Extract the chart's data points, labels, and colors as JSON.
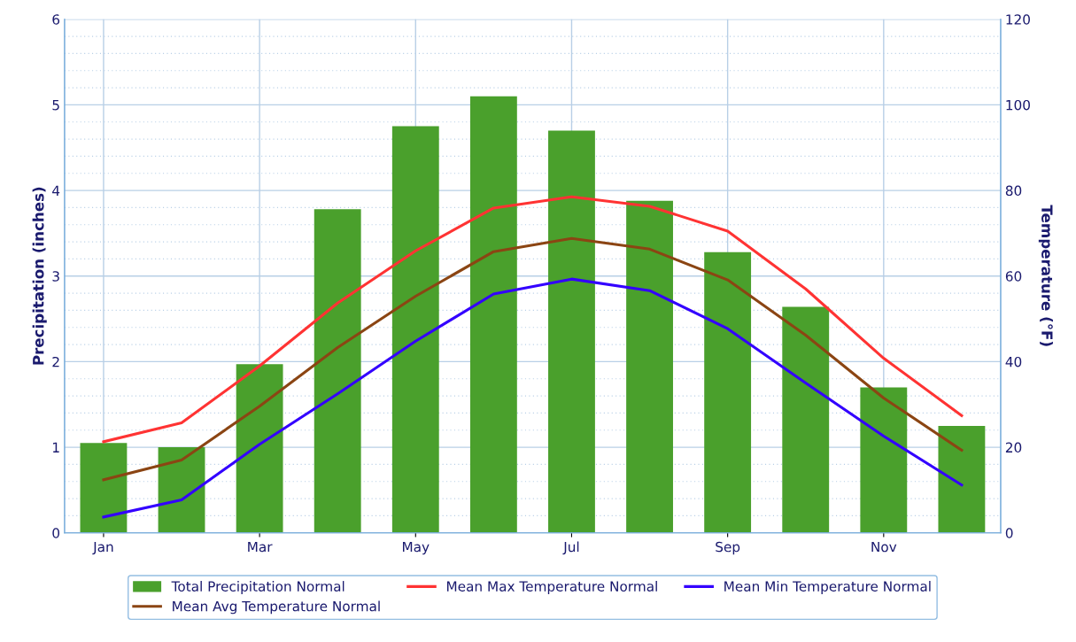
{
  "chart_data": {
    "type": "bar",
    "categories": [
      "Jan",
      null,
      "Mar",
      null,
      "May",
      null,
      "Jul",
      null,
      "Sep",
      null,
      "Nov",
      null
    ],
    "series": [
      {
        "name": "Total Precipitation Normal",
        "color": "#4aa02c",
        "values": [
          1.05,
          1.0,
          1.97,
          3.78,
          4.75,
          5.1,
          4.7,
          3.88,
          3.28,
          2.64,
          1.7,
          1.25
        ]
      },
      {
        "name": "Mean Max Temperature Normal",
        "type": "line",
        "axis": "y2",
        "color": "#ff3333",
        "values": [
          21.3,
          25.7,
          39.0,
          53.7,
          65.9,
          75.9,
          78.5,
          76.3,
          70.5,
          57.0,
          40.8,
          27.4
        ]
      },
      {
        "name": "Mean Min Temperature Normal",
        "type": "line",
        "axis": "y2",
        "color": "#3300ff",
        "values": [
          3.7,
          7.7,
          20.7,
          32.5,
          44.8,
          55.8,
          59.3,
          56.6,
          47.7,
          35.0,
          22.6,
          11.2
        ]
      },
      {
        "name": "Mean Avg Temperature Normal",
        "type": "line",
        "axis": "y2",
        "color": "#8b4513",
        "values": [
          12.4,
          17.0,
          29.6,
          43.3,
          55.3,
          65.7,
          68.8,
          66.3,
          59.1,
          46.2,
          31.5,
          19.3
        ]
      }
    ],
    "ylabel": "Precipitation (inches)",
    "y2label": "Temperature (°F)",
    "ylim": [
      0,
      6
    ],
    "yticks": [
      0,
      {
        "value": 0.2,
        "label": null
      },
      {
        "value": 0.4,
        "label": null
      },
      {
        "value": 0.6,
        "label": null
      },
      {
        "value": 0.8,
        "label": null
      },
      1,
      {
        "value": 1.2,
        "label": null
      },
      {
        "value": 1.4,
        "label": null
      },
      {
        "value": 1.6,
        "label": null
      },
      {
        "value": 1.8,
        "label": null
      },
      2,
      {
        "value": 2.2,
        "label": null
      },
      {
        "value": 2.4,
        "label": null
      },
      {
        "value": 2.6,
        "label": null
      },
      {
        "value": 2.8,
        "label": null
      },
      3,
      {
        "value": 3.2,
        "label": null
      },
      {
        "value": 3.4,
        "label": null
      },
      {
        "value": 3.6,
        "label": null
      },
      {
        "value": 3.8,
        "label": null
      },
      4,
      {
        "value": 4.2,
        "label": null
      },
      {
        "value": 4.4,
        "label": null
      },
      {
        "value": 4.6,
        "label": null
      },
      {
        "value": 4.8,
        "label": null
      },
      5,
      {
        "value": 5.2,
        "label": null
      },
      {
        "value": 5.4,
        "label": null
      },
      {
        "value": 5.6,
        "label": null
      },
      {
        "value": 5.8,
        "label": null
      },
      6
    ],
    "y2lim": [
      0,
      120
    ],
    "y2ticks": [
      0,
      20,
      40,
      60,
      80,
      100,
      120
    ],
    "grid": true,
    "legend": "bottom",
    "marker": "none",
    "line_style": "solid"
  }
}
